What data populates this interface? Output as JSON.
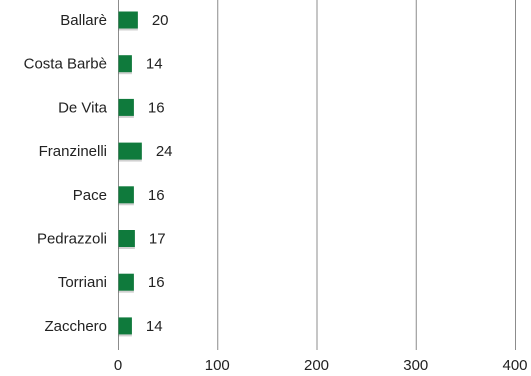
{
  "chart_data": {
    "type": "bar",
    "orientation": "horizontal",
    "categories": [
      "Ballarè",
      "Costa Barbè",
      "De Vita",
      "Franzinelli",
      "Pace",
      "Pedrazzoli",
      "Torriani",
      "Zacchero"
    ],
    "values": [
      20,
      14,
      16,
      24,
      16,
      17,
      16,
      14
    ],
    "data_labels": [
      "20",
      "14",
      "16",
      "24",
      "16",
      "17",
      "16",
      "14"
    ],
    "xticks": [
      0,
      100,
      200,
      300,
      400
    ],
    "xtick_labels": [
      "0",
      "100",
      "200",
      "300",
      "400"
    ],
    "xlim": [
      0,
      400
    ],
    "title": "",
    "xlabel": "",
    "ylabel": "",
    "grid": "vertical",
    "legend": "none",
    "bar_color": "#0f7a3c"
  }
}
